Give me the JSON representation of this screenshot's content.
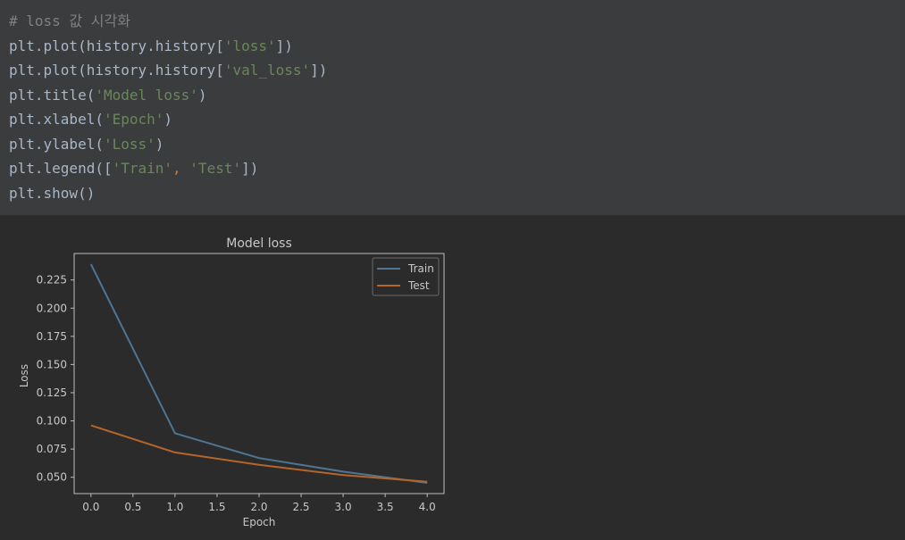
{
  "code": {
    "comment": "# loss 값 시각화",
    "lines": [
      {
        "pre": "plt.plot(history.history[",
        "str": "'loss'",
        "post": "])"
      },
      {
        "pre": "plt.plot(history.history[",
        "str": "'val_loss'",
        "post": "])"
      },
      {
        "pre": "plt.title(",
        "str": "'Model loss'",
        "post": ")"
      },
      {
        "pre": "plt.xlabel(",
        "str": "'Epoch'",
        "post": ")"
      },
      {
        "pre": "plt.ylabel(",
        "str": "'Loss'",
        "post": ")"
      }
    ],
    "legend_line": {
      "pre": "plt.legend([",
      "str1": "'Train'",
      "sep": ", ",
      "str2": "'Test'",
      "post": "])"
    },
    "show_line": "plt.show()"
  },
  "colors": {
    "train": "#4e7594",
    "test": "#b5652a",
    "cell_bg": "#3a3c3e",
    "output_bg": "#2b2b2b"
  },
  "chart_data": {
    "type": "line",
    "title": "Model loss",
    "xlabel": "Epoch",
    "ylabel": "Loss",
    "x": [
      0,
      1,
      2,
      3,
      4
    ],
    "series": [
      {
        "name": "Train",
        "values": [
          0.239,
          0.089,
          0.067,
          0.055,
          0.045
        ]
      },
      {
        "name": "Test",
        "values": [
          0.096,
          0.072,
          0.061,
          0.052,
          0.046
        ]
      }
    ],
    "xticks": [
      "0.0",
      "0.5",
      "1.0",
      "1.5",
      "2.0",
      "2.5",
      "3.0",
      "3.5",
      "4.0"
    ],
    "yticks": [
      "0.050",
      "0.075",
      "0.100",
      "0.125",
      "0.150",
      "0.175",
      "0.200",
      "0.225"
    ],
    "xlim": [
      -0.2,
      4.2
    ],
    "ylim": [
      0.0355,
      0.2485
    ],
    "legend_position": "top-right",
    "grid": false
  }
}
